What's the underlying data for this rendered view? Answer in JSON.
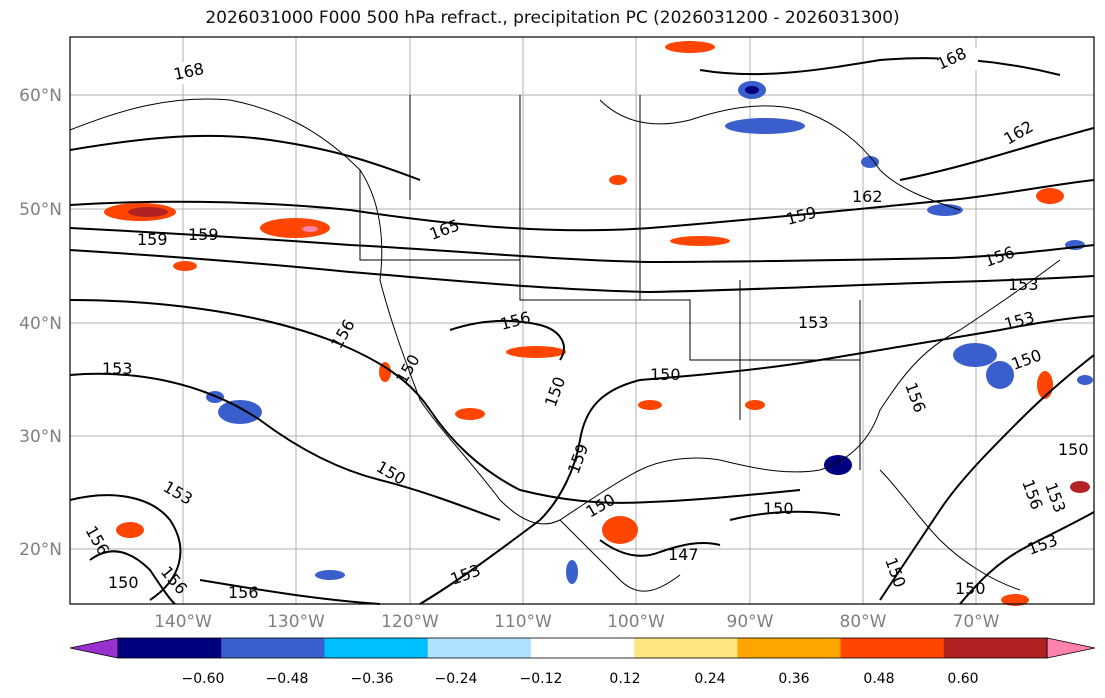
{
  "title": "2026031000 F000 500 hPa refract., precipitation PC (2026031200 - 2026031300)",
  "map": {
    "lat_ticks": [
      "60°N",
      "50°N",
      "40°N",
      "30°N",
      "20°N"
    ],
    "lon_ticks": [
      "140°W",
      "130°W",
      "120°W",
      "110°W",
      "100°W",
      "90°W",
      "80°W",
      "70°W"
    ],
    "contour_labels": [
      "168",
      "168",
      "162",
      "162",
      "159",
      "159",
      "159",
      "165",
      "156",
      "156",
      "156",
      "153",
      "153",
      "153",
      "153",
      "150",
      "150",
      "150",
      "150",
      "150",
      "150",
      "147",
      "153",
      "156",
      "150",
      "156",
      "153",
      "153",
      "150",
      "150",
      "156",
      "159",
      "156",
      "156",
      "153",
      "150",
      "150"
    ]
  },
  "colorbar": {
    "tick_labels": [
      "−0.60",
      "−0.48",
      "−0.36",
      "−0.24",
      "−0.12",
      "0.12",
      "0.24",
      "0.36",
      "0.48",
      "0.60"
    ],
    "colors": [
      "#9b30d0",
      "#00007f",
      "#3a5fcd",
      "#00bfff",
      "#b0e2ff",
      "#ffffff",
      "#ffe680",
      "#ffa500",
      "#ff4500",
      "#b22222",
      "#ff82ab"
    ]
  }
}
